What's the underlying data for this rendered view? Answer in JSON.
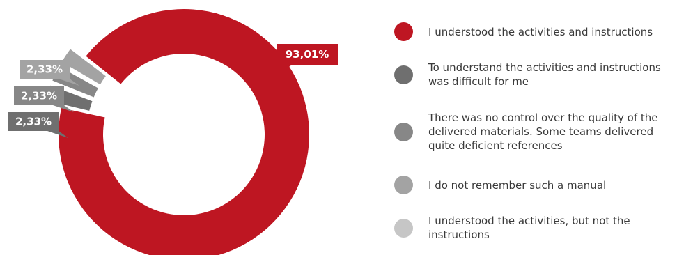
{
  "chart_data": {
    "type": "pie",
    "variant": "donut",
    "categories": [
      "I understood the activities and instructions",
      "To understand the activities and instructions\nwas difficult for me",
      "There was no control over the quality of the\ndelivered materials. Some teams delivered\nquite deficient references",
      "I do not remember such a manual",
      "I understood the activities, but not the\ninstructions"
    ],
    "values": [
      93.01,
      2.33,
      2.33,
      2.33,
      0
    ],
    "data_labels": [
      "93,01%",
      "2,33%",
      "2,33%",
      "2,33%",
      ""
    ],
    "colors": [
      "#be1622",
      "#6f6f6f",
      "#878787",
      "#a3a3a3",
      "#c6c6c6"
    ],
    "legend_position": "right",
    "title": "",
    "exploded_small_slices": true
  }
}
